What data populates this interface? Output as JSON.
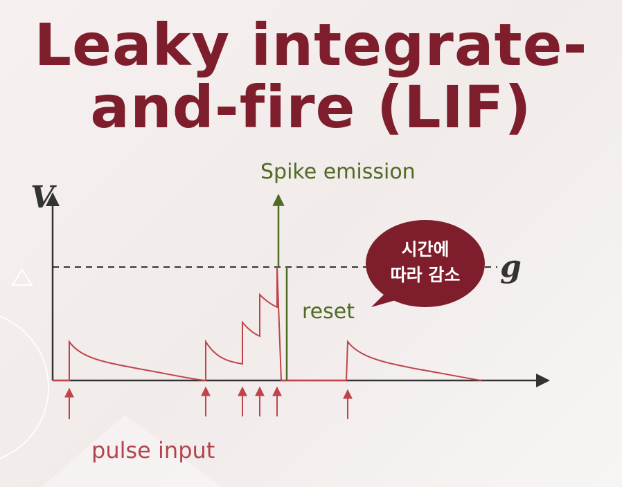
{
  "title": {
    "line1": "Leaky integrate-",
    "line2": "and-fire (LIF)"
  },
  "diagram": {
    "y_axis_label": "V",
    "threshold_label": "g",
    "spike_label": "Spike emission",
    "reset_label": "reset",
    "input_label": "pulse input",
    "bubble": {
      "line1": "시간에",
      "line2": "따라 감소"
    }
  },
  "colors": {
    "title": "#7e1d2b",
    "membrane": "#c0434b",
    "spike": "#4f6b24",
    "bubble": "#7e1d2b"
  }
}
